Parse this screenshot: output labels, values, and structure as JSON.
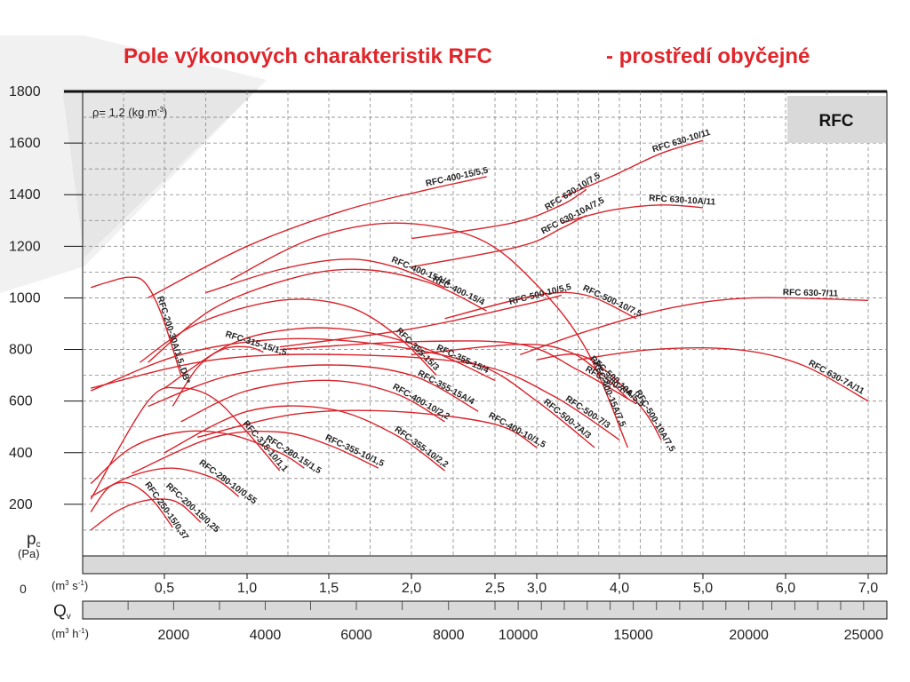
{
  "title": {
    "main": "Pole výkonových charakteristik RFC",
    "env": "- prostředí obyčejné"
  },
  "chart_data": {
    "type": "line",
    "density_note": "ρ= 1,2 (kg m",
    "density_sup": "-3",
    "density_end": ")",
    "badge": "RFC",
    "y_axis": {
      "symbol": "p",
      "symbol_sub": "c",
      "unit": "(Pa)",
      "zero_label": "0",
      "ylim": [
        0,
        1800
      ],
      "ticks": [
        {
          "value": 200,
          "label": "200"
        },
        {
          "value": 400,
          "label": "400"
        },
        {
          "value": 600,
          "label": "600"
        },
        {
          "value": 800,
          "label": "800"
        },
        {
          "value": 1000,
          "label": "1000"
        },
        {
          "value": 1200,
          "label": "1200"
        },
        {
          "value": 1400,
          "label": "1400"
        },
        {
          "value": 1600,
          "label": "1600"
        },
        {
          "value": 1800,
          "label": "1800"
        }
      ]
    },
    "x_axis": {
      "unit_a": "(m",
      "unit_a_sup": "3",
      "unit_a_mid": " s",
      "unit_a_sup2": "-1",
      "unit_a_end": ")",
      "xlim": [
        0,
        7.2
      ],
      "ticks": [
        {
          "value": 0.5,
          "label": "0,5"
        },
        {
          "value": 1.0,
          "label": "1,0"
        },
        {
          "value": 1.5,
          "label": "1,5"
        },
        {
          "value": 2.0,
          "label": "2,0"
        },
        {
          "value": 2.5,
          "label": "2,5"
        },
        {
          "value": 3.0,
          "label": "3,0"
        },
        {
          "value": 4.0,
          "label": "4,0"
        },
        {
          "value": 5.0,
          "label": "5,0"
        },
        {
          "value": 6.0,
          "label": "6,0"
        },
        {
          "value": 7.0,
          "label": "7,0"
        }
      ]
    },
    "x2_axis": {
      "symbol": "Q",
      "symbol_sub": "v",
      "unit_b": "(m",
      "unit_b_sup": "3",
      "unit_b_mid": " h",
      "unit_b_sup2": "-1",
      "unit_b_end": ")",
      "ticks": [
        {
          "value": 2000,
          "label": "2000"
        },
        {
          "value": 4000,
          "label": "4000"
        },
        {
          "value": 6000,
          "label": "6000"
        },
        {
          "value": 8000,
          "label": "8000"
        },
        {
          "value": 10000,
          "label": "10000"
        },
        {
          "value": 15000,
          "label": "15000"
        },
        {
          "value": 20000,
          "label": "20000"
        },
        {
          "value": 25000,
          "label": "25000"
        }
      ]
    },
    "series": [
      {
        "name": "RFC-200-15/0,25",
        "points": [
          [
            0.05,
            100
          ],
          [
            0.2,
            170
          ],
          [
            0.35,
            210
          ],
          [
            0.5,
            220
          ],
          [
            0.6,
            200
          ],
          [
            0.72,
            130
          ]
        ]
      },
      {
        "name": "RFC-200-30A/1,5..DB*",
        "points": [
          [
            0.05,
            1040
          ],
          [
            0.15,
            1060
          ],
          [
            0.28,
            1080
          ],
          [
            0.38,
            1060
          ],
          [
            0.48,
            940
          ],
          [
            0.6,
            700
          ]
        ]
      },
      {
        "name": "RFC-250-15/0,37",
        "points": [
          [
            0.05,
            170
          ],
          [
            0.15,
            260
          ],
          [
            0.25,
            285
          ],
          [
            0.35,
            260
          ],
          [
            0.45,
            200
          ],
          [
            0.55,
            110
          ]
        ]
      },
      {
        "name": "RFC-280-10/0,55",
        "points": [
          [
            0.05,
            230
          ],
          [
            0.3,
            310
          ],
          [
            0.55,
            340
          ],
          [
            0.8,
            300
          ],
          [
            0.95,
            230
          ]
        ]
      },
      {
        "name": "RFC-280-15/1,5",
        "points": [
          [
            0.05,
            280
          ],
          [
            0.3,
            420
          ],
          [
            0.6,
            480
          ],
          [
            0.9,
            470
          ],
          [
            1.2,
            400
          ],
          [
            1.35,
            340
          ]
        ]
      },
      {
        "name": "RFC-315-10/1,1",
        "points": [
          [
            0.05,
            220
          ],
          [
            0.4,
            600
          ],
          [
            0.6,
            650
          ],
          [
            0.8,
            610
          ],
          [
            1.0,
            480
          ],
          [
            1.2,
            330
          ]
        ]
      },
      {
        "name": "RFC-315-15/1,5",
        "points": [
          [
            0.55,
            580
          ],
          [
            0.7,
            730
          ],
          [
            0.85,
            800
          ],
          [
            1.0,
            810
          ],
          [
            1.1,
            790
          ]
        ]
      },
      {
        "name": "RFC-355-10/1,5",
        "points": [
          [
            0.3,
            320
          ],
          [
            0.8,
            460
          ],
          [
            1.2,
            480
          ],
          [
            1.5,
            430
          ],
          [
            1.8,
            340
          ]
        ]
      },
      {
        "name": "RFC-355-10/2,2",
        "points": [
          [
            0.5,
            400
          ],
          [
            1.0,
            560
          ],
          [
            1.5,
            570
          ],
          [
            1.9,
            470
          ],
          [
            2.2,
            330
          ]
        ]
      },
      {
        "name": "RFC-355-15/3",
        "points": [
          [
            0.35,
            750
          ],
          [
            0.7,
            900
          ],
          [
            1.2,
            990
          ],
          [
            1.6,
            970
          ],
          [
            1.9,
            860
          ],
          [
            2.15,
            700
          ]
        ]
      },
      {
        "name": "RFC-355-15/4",
        "points": [
          [
            0.5,
            650
          ],
          [
            0.9,
            820
          ],
          [
            1.3,
            880
          ],
          [
            1.7,
            870
          ],
          [
            2.1,
            800
          ],
          [
            2.5,
            680
          ]
        ]
      },
      {
        "name": "RFC-355-15A/4",
        "points": [
          [
            0.4,
            580
          ],
          [
            0.9,
            700
          ],
          [
            1.5,
            740
          ],
          [
            2.0,
            700
          ],
          [
            2.4,
            560
          ]
        ]
      },
      {
        "name": "RFC-400-10/1,5",
        "points": [
          [
            0.7,
            460
          ],
          [
            1.3,
            550
          ],
          [
            1.9,
            560
          ],
          [
            2.5,
            510
          ],
          [
            3.0,
            420
          ]
        ]
      },
      {
        "name": "RFC-400-10/2,2",
        "points": [
          [
            0.6,
            520
          ],
          [
            1.0,
            640
          ],
          [
            1.5,
            680
          ],
          [
            1.9,
            630
          ],
          [
            2.2,
            520
          ]
        ]
      },
      {
        "name": "RFC-400-15/4",
        "points": [
          [
            0.4,
            750
          ],
          [
            0.8,
            960
          ],
          [
            1.3,
            1080
          ],
          [
            1.7,
            1110
          ],
          [
            2.1,
            1060
          ],
          [
            2.45,
            950
          ]
        ]
      },
      {
        "name": "RFC-400-15/5,5",
        "points": [
          [
            0.4,
            1000
          ],
          [
            1.0,
            1200
          ],
          [
            1.6,
            1340
          ],
          [
            2.1,
            1420
          ],
          [
            2.45,
            1470
          ]
        ]
      },
      {
        "name": "RFC-400-15A/4",
        "points": [
          [
            0.75,
            1020
          ],
          [
            1.2,
            1110
          ],
          [
            1.6,
            1150
          ],
          [
            1.9,
            1120
          ],
          [
            2.2,
            1040
          ]
        ]
      },
      {
        "name": "RFC-400-15A/7,5",
        "points": [
          [
            0.9,
            1070
          ],
          [
            1.4,
            1230
          ],
          [
            1.9,
            1290
          ],
          [
            2.4,
            1230
          ],
          [
            3.0,
            1050
          ],
          [
            3.6,
            800
          ],
          [
            4.1,
            420
          ]
        ]
      },
      {
        "name": "RFC-500-7/3",
        "points": [
          [
            0.05,
            650
          ],
          [
            0.8,
            760
          ],
          [
            1.6,
            780
          ],
          [
            2.4,
            740
          ],
          [
            3.2,
            620
          ],
          [
            4.0,
            450
          ]
        ]
      },
      {
        "name": "RFC-500-7/4",
        "points": [
          [
            1.2,
            800
          ],
          [
            2.0,
            830
          ],
          [
            2.8,
            820
          ],
          [
            3.5,
            720
          ],
          [
            4.2,
            590
          ]
        ]
      },
      {
        "name": "RFC-500-7A/3",
        "points": [
          [
            0.05,
            640
          ],
          [
            0.6,
            780
          ],
          [
            1.2,
            840
          ],
          [
            1.8,
            820
          ],
          [
            2.4,
            740
          ],
          [
            3.0,
            600
          ],
          [
            3.7,
            420
          ]
        ]
      },
      {
        "name": "RFC-500-10/5,5",
        "points": [
          [
            1.2,
            810
          ],
          [
            2.0,
            880
          ],
          [
            2.8,
            970
          ],
          [
            3.3,
            1010
          ]
        ]
      },
      {
        "name": "RFC-500-10/7,5",
        "points": [
          [
            2.2,
            920
          ],
          [
            3.0,
            1010
          ],
          [
            3.6,
            1010
          ],
          [
            4.2,
            920
          ]
        ]
      },
      {
        "name": "RFC-500-10A/5,5",
        "points": [
          [
            2.0,
            780
          ],
          [
            2.8,
            820
          ],
          [
            3.4,
            790
          ],
          [
            3.8,
            700
          ],
          [
            4.1,
            610
          ]
        ]
      },
      {
        "name": "RFC-500-10A/7,5",
        "points": [
          [
            3.0,
            760
          ],
          [
            3.5,
            780
          ],
          [
            3.9,
            700
          ],
          [
            4.3,
            560
          ],
          [
            4.5,
            450
          ]
        ]
      },
      {
        "name": "RFC 630-10/7,5",
        "points": [
          [
            2.0,
            1230
          ],
          [
            2.7,
            1290
          ],
          [
            3.3,
            1360
          ],
          [
            3.6,
            1420
          ]
        ]
      },
      {
        "name": "RFC 630-10/11",
        "points": [
          [
            3.3,
            1390
          ],
          [
            3.9,
            1470
          ],
          [
            4.5,
            1560
          ],
          [
            5.0,
            1610
          ]
        ]
      },
      {
        "name": "RFC 630-10A/7,5",
        "points": [
          [
            2.0,
            1120
          ],
          [
            2.8,
            1200
          ],
          [
            3.3,
            1270
          ],
          [
            3.6,
            1320
          ]
        ]
      },
      {
        "name": "RFC 630-10A/11",
        "points": [
          [
            3.3,
            1290
          ],
          [
            3.9,
            1340
          ],
          [
            4.5,
            1360
          ],
          [
            5.0,
            1350
          ]
        ]
      },
      {
        "name": "RFC 630-7/11",
        "points": [
          [
            2.8,
            780
          ],
          [
            3.6,
            870
          ],
          [
            4.6,
            960
          ],
          [
            5.6,
            1000
          ],
          [
            7.0,
            990
          ]
        ]
      },
      {
        "name": "RFC 630-7A/11",
        "points": [
          [
            3.5,
            760
          ],
          [
            4.4,
            800
          ],
          [
            5.4,
            800
          ],
          [
            6.2,
            740
          ],
          [
            7.0,
            600
          ]
        ]
      }
    ]
  }
}
